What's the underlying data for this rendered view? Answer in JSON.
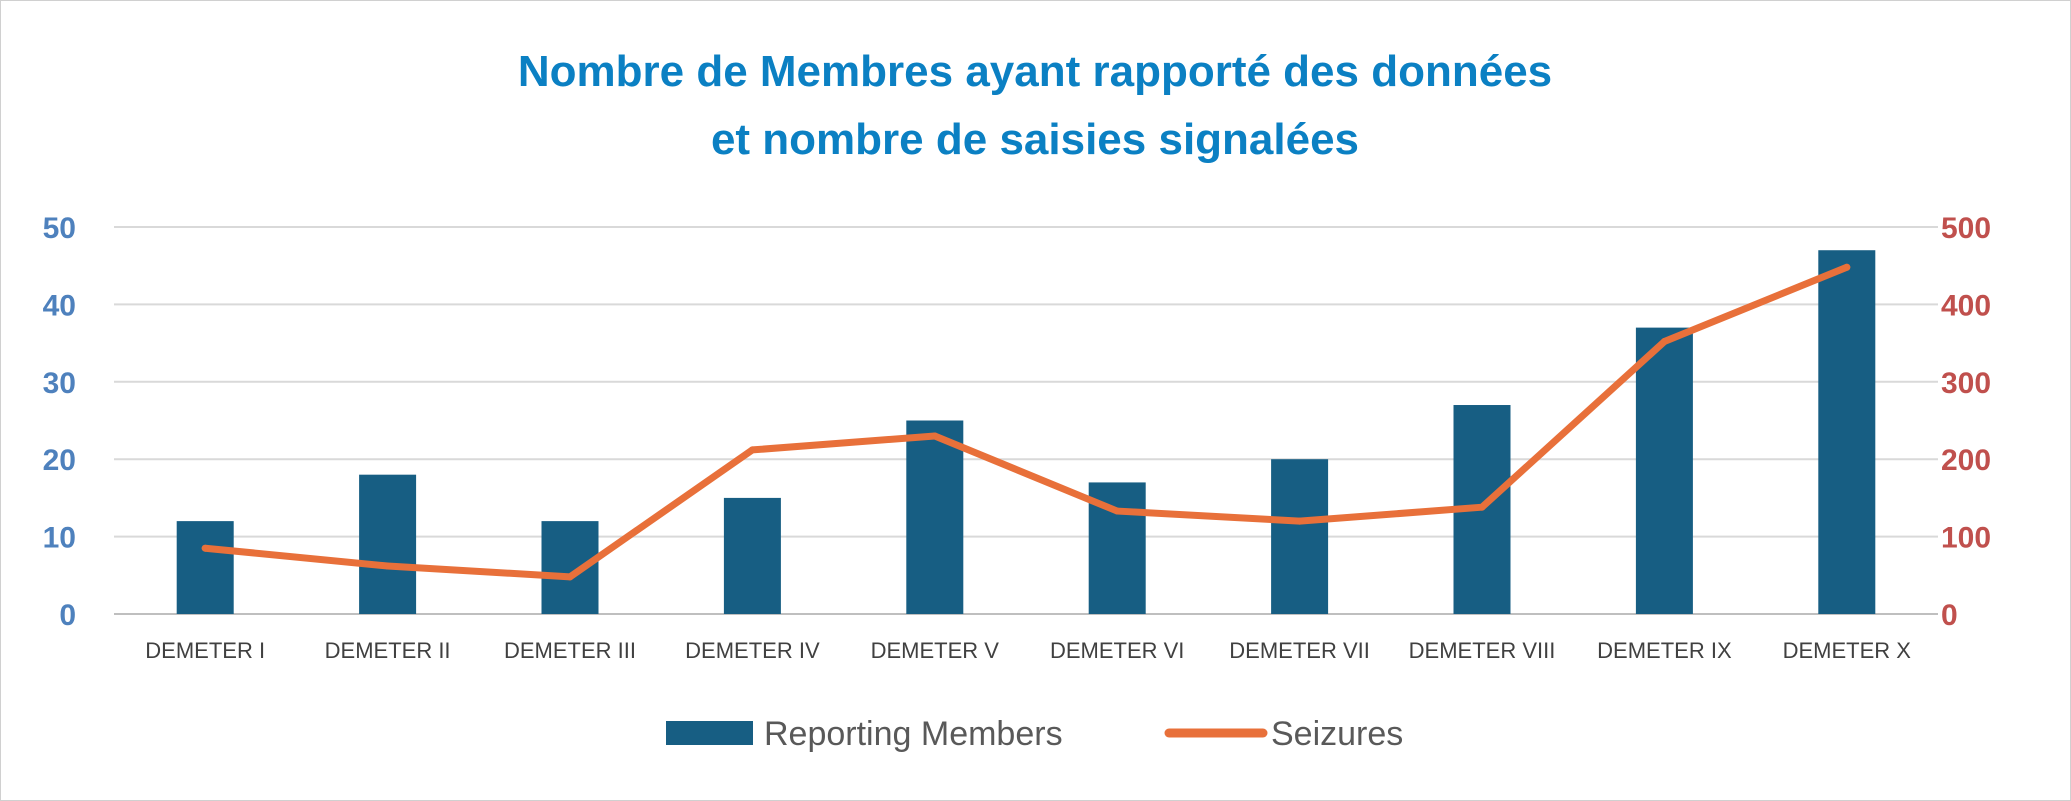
{
  "chart_data": {
    "type": "bar",
    "title_lines": [
      "Nombre de Membres ayant rapporté des données",
      "et nombre de saisies signalées"
    ],
    "categories": [
      "DEMETER I",
      "DEMETER II",
      "DEMETER III",
      "DEMETER IV",
      "DEMETER V",
      "DEMETER VI",
      "DEMETER VII",
      "DEMETER VIII",
      "DEMETER IX",
      "DEMETER X"
    ],
    "series": [
      {
        "name": "Reporting Members",
        "type": "bar",
        "axis": "left",
        "color": "#175e83",
        "values": [
          12,
          18,
          12,
          15,
          25,
          17,
          20,
          27,
          37,
          47
        ]
      },
      {
        "name": "Seizures",
        "type": "line",
        "axis": "right",
        "color": "#e8703a",
        "values": [
          85,
          62,
          48,
          212,
          230,
          133,
          120,
          138,
          352,
          448
        ]
      }
    ],
    "y_left": {
      "min": 0,
      "max": 50,
      "ticks": [
        "0",
        "10",
        "20",
        "30",
        "40",
        "50"
      ],
      "color": "#4e81bd"
    },
    "y_right": {
      "min": 0,
      "max": 500,
      "ticks": [
        "0",
        "100",
        "200",
        "300",
        "400",
        "500"
      ],
      "color": "#c0504d"
    },
    "title_color": "#0b80c3",
    "grid": "horizontal",
    "legend_position": "bottom"
  }
}
